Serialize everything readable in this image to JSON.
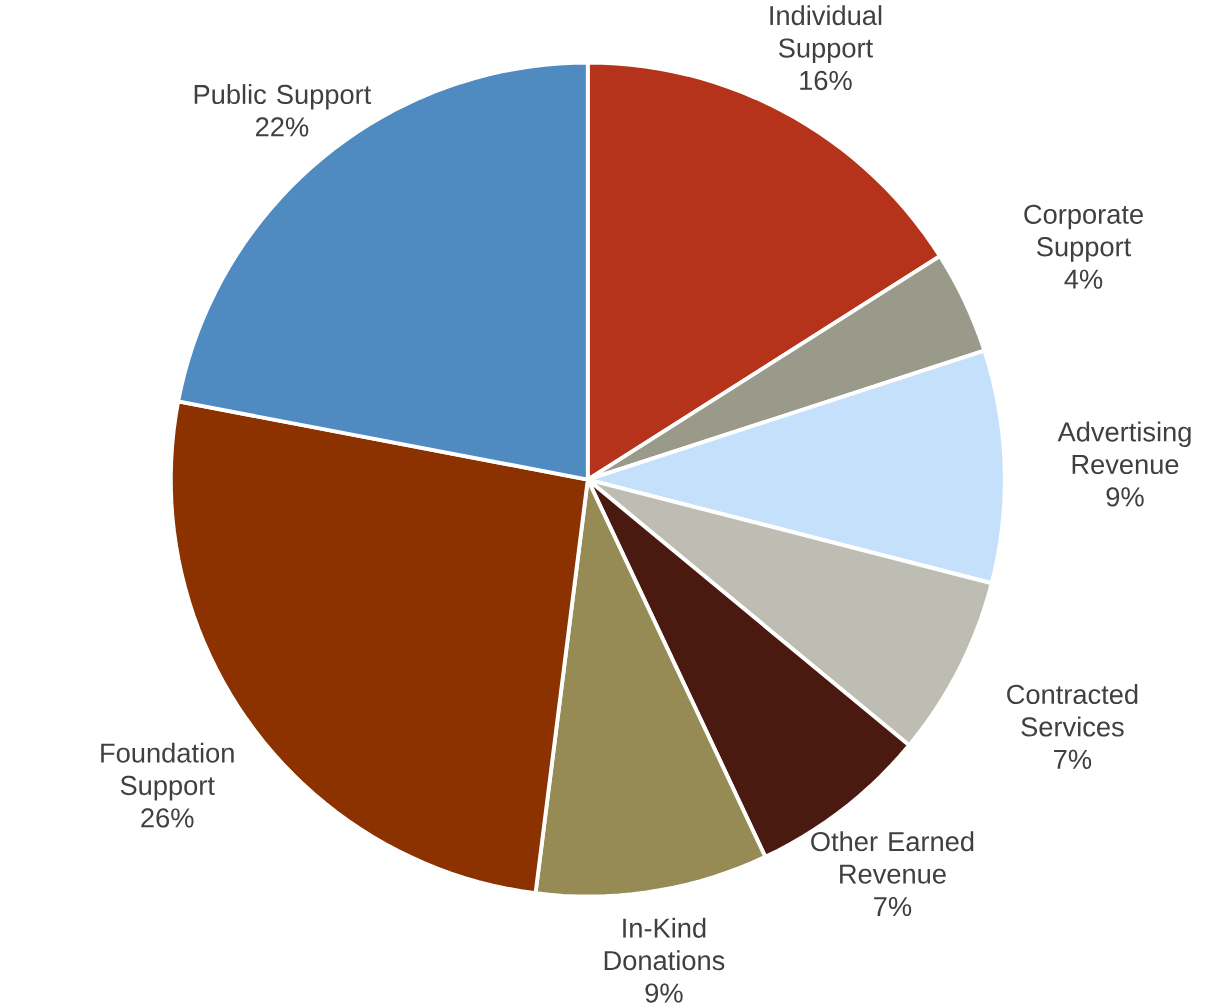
{
  "chart_data": {
    "type": "pie",
    "categories": [
      "Individual Support",
      "Corporate Support",
      "Advertising Revenue",
      "Contracted Services",
      "Other Earned Revenue",
      "In-Kind Donations",
      "Foundation Support",
      "Public Support"
    ],
    "values": [
      16,
      4,
      9,
      7,
      7,
      9,
      26,
      22
    ],
    "value_labels": [
      "16%",
      "4%",
      "9%",
      "7%",
      "7%",
      "9%",
      "26%",
      "22%"
    ],
    "colors": [
      "#b5331a",
      "#9a9a8a",
      "#c5e0fa",
      "#bdbdb3",
      "#4a1a10",
      "#968a55",
      "#8b3200",
      "#4f8ac0"
    ]
  }
}
